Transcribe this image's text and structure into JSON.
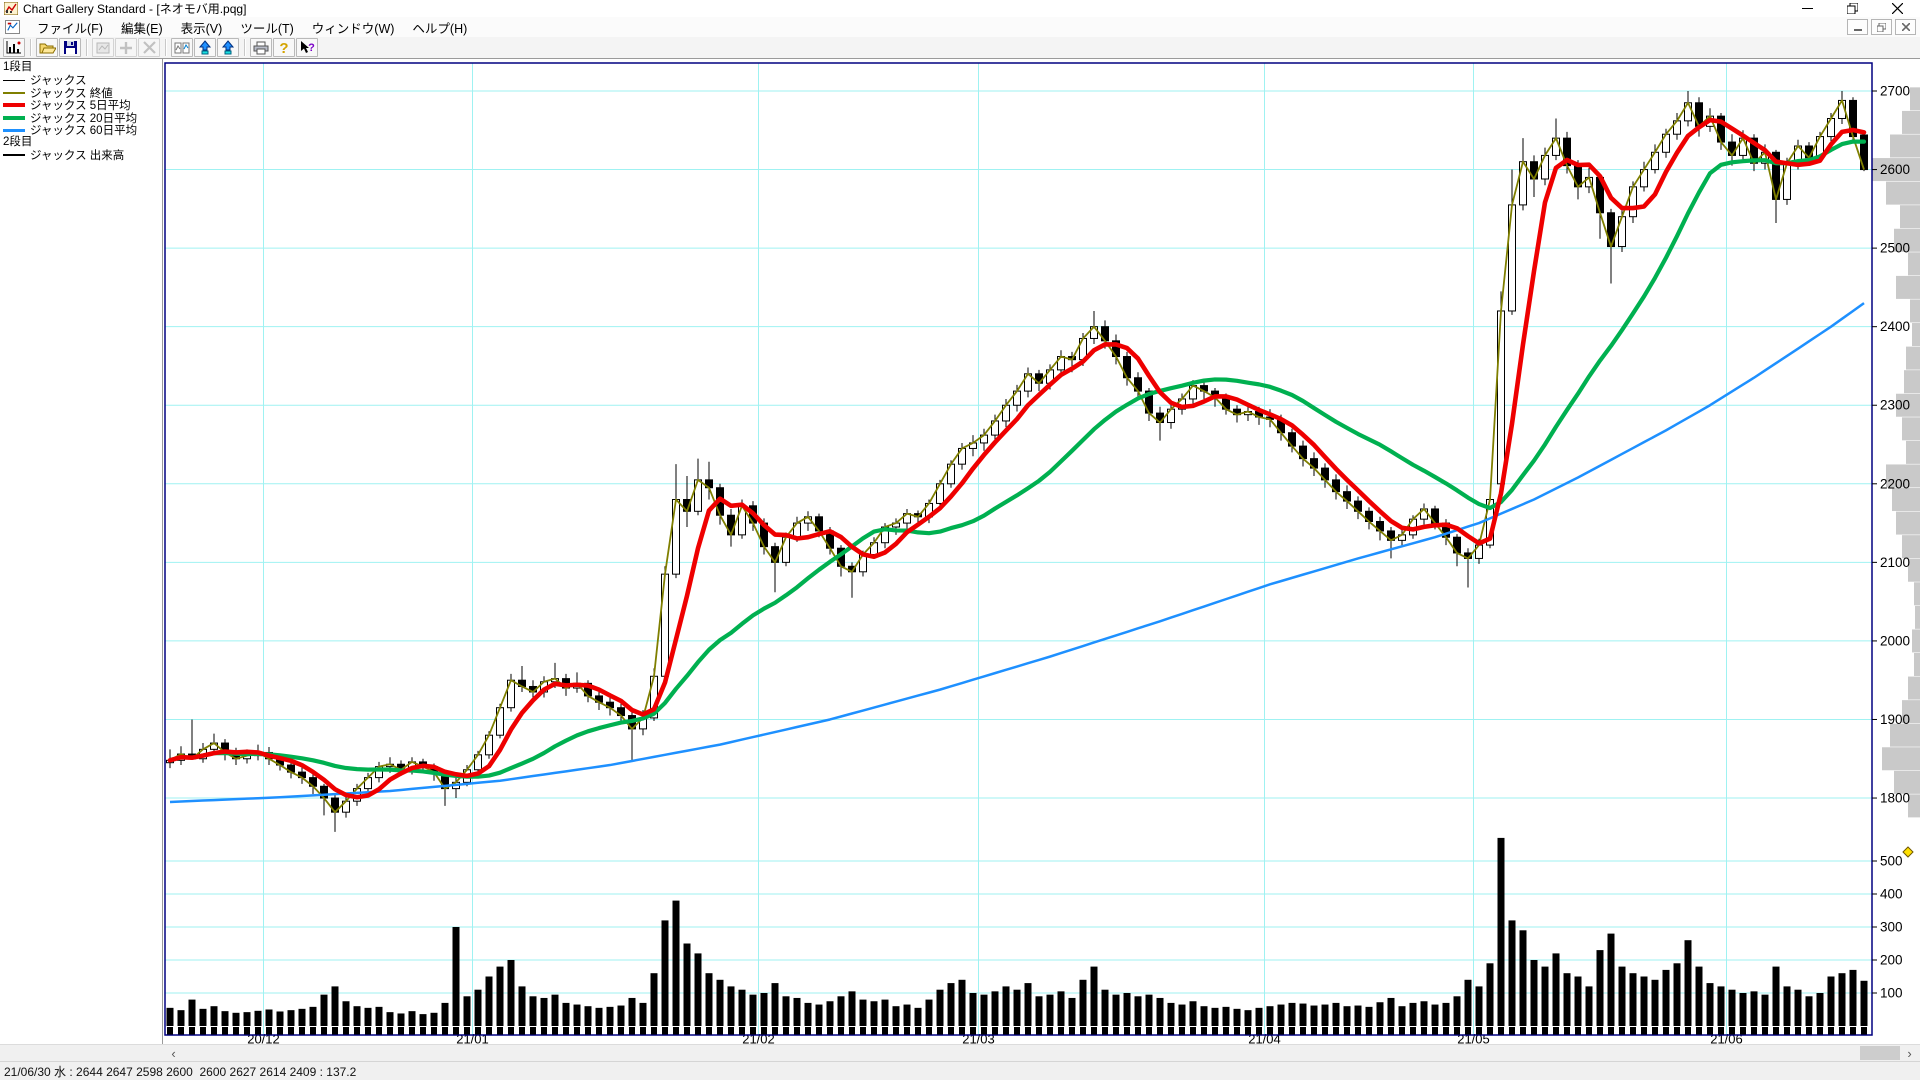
{
  "window": {
    "title": "Chart Gallery Standard - [ネオモバ用.pqg]",
    "controls": [
      {
        "name": "minimize"
      },
      {
        "name": "maximize"
      },
      {
        "name": "close"
      }
    ]
  },
  "menu": {
    "items": [
      "ファイル(F)",
      "編集(E)",
      "表示(V)",
      "ツール(T)",
      "ウィンドウ(W)",
      "ヘルプ(H)"
    ],
    "mdi_controls": [
      {
        "name": "mdi-minimize"
      },
      {
        "name": "mdi-restore"
      },
      {
        "name": "mdi-close"
      }
    ]
  },
  "toolbar": {
    "buttons": [
      {
        "name": "chart-wizard",
        "enabled": true,
        "group": 0
      },
      {
        "name": "open-file",
        "enabled": true,
        "group": 1
      },
      {
        "name": "save-file",
        "enabled": true,
        "group": 1
      },
      {
        "name": "copy-chart",
        "enabled": false,
        "group": 2
      },
      {
        "name": "add-data",
        "enabled": false,
        "group": 2
      },
      {
        "name": "delete-data",
        "enabled": false,
        "group": 2
      },
      {
        "name": "rescale-chart",
        "enabled": true,
        "group": 3
      },
      {
        "name": "scroll-down",
        "enabled": true,
        "group": 3
      },
      {
        "name": "scroll-up",
        "enabled": true,
        "group": 3
      },
      {
        "name": "print",
        "enabled": true,
        "group": 4
      },
      {
        "name": "help",
        "enabled": true,
        "group": 4
      },
      {
        "name": "context-help",
        "enabled": true,
        "group": 4
      }
    ]
  },
  "legend": {
    "pane1_label": "1段目",
    "pane1_items": [
      {
        "label": "ジャックス",
        "color": "#000000",
        "thickness": 1
      },
      {
        "label": "ジャックス 終値",
        "color": "#7f7f00",
        "thickness": 2
      },
      {
        "label": "ジャックス 5日平均",
        "color": "#ee0000",
        "thickness": 4
      },
      {
        "label": "ジャックス 20日平均",
        "color": "#00b050",
        "thickness": 4
      },
      {
        "label": "ジャックス 60日平均",
        "color": "#1e90ff",
        "thickness": 3
      }
    ],
    "pane2_label": "2段目",
    "pane2_items": [
      {
        "label": "ジャックス 出来高",
        "color": "#000000",
        "thickness": 2
      }
    ]
  },
  "scrollbar": {
    "left_arrow": "‹",
    "right_arrow": "›"
  },
  "status_bar": {
    "text": "21/06/30 水 : 2644 2647 2598 2600  2600 2627 2614 2409 : 137.2"
  },
  "chart_data": {
    "type": "candlestick+volume",
    "symbol": "ジャックス",
    "x_labels": [
      "20/12",
      "21/01",
      "21/02",
      "21/03",
      "21/04",
      "21/05",
      "21/06"
    ],
    "month_tick_days": [
      9,
      28,
      54,
      74,
      100,
      119,
      142
    ],
    "price_axis": {
      "min": 1760,
      "max": 2720,
      "ticks": [
        2700,
        2600,
        2500,
        2400,
        2300,
        2200,
        2100,
        2000,
        1900,
        1800
      ]
    },
    "volume_axis": {
      "ticks": [
        500,
        400,
        300,
        200,
        100
      ]
    },
    "colors": {
      "grid": "#9ff2f2",
      "border": "#000080",
      "close_line": "#7f7f00",
      "ma5": "#ee0000",
      "ma20": "#00b050",
      "ma60": "#1e90ff",
      "candle_up": "#ffffff",
      "candle_down": "#000000",
      "volume": "#000000",
      "profile": "#c9c9c9",
      "marker": "#ffe000"
    },
    "candles": [
      [
        1845,
        1862,
        1838,
        1848,
        55
      ],
      [
        1848,
        1866,
        1842,
        1856,
        48
      ],
      [
        1856,
        1900,
        1850,
        1850,
        80
      ],
      [
        1850,
        1870,
        1845,
        1862,
        52
      ],
      [
        1862,
        1882,
        1855,
        1870,
        60
      ],
      [
        1870,
        1875,
        1848,
        1858,
        45
      ],
      [
        1858,
        1864,
        1842,
        1850,
        40
      ],
      [
        1850,
        1862,
        1844,
        1854,
        42
      ],
      [
        1854,
        1868,
        1848,
        1858,
        46
      ],
      [
        1858,
        1865,
        1842,
        1850,
        50
      ],
      [
        1850,
        1856,
        1835,
        1842,
        44
      ],
      [
        1842,
        1848,
        1825,
        1833,
        48
      ],
      [
        1833,
        1840,
        1818,
        1826,
        52
      ],
      [
        1826,
        1830,
        1805,
        1815,
        58
      ],
      [
        1815,
        1818,
        1778,
        1800,
        95
      ],
      [
        1800,
        1805,
        1757,
        1782,
        120
      ],
      [
        1782,
        1802,
        1775,
        1796,
        75
      ],
      [
        1796,
        1818,
        1790,
        1812,
        60
      ],
      [
        1812,
        1832,
        1806,
        1826,
        55
      ],
      [
        1826,
        1846,
        1820,
        1840,
        58
      ],
      [
        1840,
        1852,
        1832,
        1843,
        42
      ],
      [
        1843,
        1848,
        1828,
        1836,
        38
      ],
      [
        1836,
        1852,
        1830,
        1846,
        45
      ],
      [
        1846,
        1850,
        1832,
        1840,
        36
      ],
      [
        1840,
        1844,
        1822,
        1833,
        40
      ],
      [
        1833,
        1836,
        1790,
        1812,
        70
      ],
      [
        1812,
        1828,
        1800,
        1820,
        300
      ],
      [
        1820,
        1842,
        1815,
        1836,
        90
      ],
      [
        1836,
        1860,
        1830,
        1855,
        110
      ],
      [
        1855,
        1885,
        1850,
        1880,
        150
      ],
      [
        1880,
        1920,
        1876,
        1915,
        180
      ],
      [
        1915,
        1958,
        1910,
        1950,
        200
      ],
      [
        1950,
        1968,
        1935,
        1942,
        120
      ],
      [
        1942,
        1950,
        1922,
        1935,
        90
      ],
      [
        1935,
        1955,
        1928,
        1948,
        85
      ],
      [
        1948,
        1972,
        1940,
        1952,
        95
      ],
      [
        1952,
        1958,
        1930,
        1940,
        70
      ],
      [
        1940,
        1960,
        1934,
        1946,
        65
      ],
      [
        1946,
        1950,
        1922,
        1930,
        60
      ],
      [
        1930,
        1938,
        1912,
        1922,
        55
      ],
      [
        1922,
        1930,
        1905,
        1915,
        58
      ],
      [
        1915,
        1920,
        1895,
        1905,
        62
      ],
      [
        1905,
        1910,
        1848,
        1888,
        85
      ],
      [
        1888,
        1912,
        1880,
        1902,
        70
      ],
      [
        1902,
        1965,
        1898,
        1955,
        160
      ],
      [
        1955,
        2095,
        1950,
        2085,
        320
      ],
      [
        2085,
        2225,
        2080,
        2180,
        380
      ],
      [
        2180,
        2210,
        2145,
        2165,
        250
      ],
      [
        2165,
        2232,
        2160,
        2205,
        220
      ],
      [
        2205,
        2228,
        2180,
        2195,
        160
      ],
      [
        2195,
        2200,
        2148,
        2160,
        140
      ],
      [
        2160,
        2168,
        2120,
        2135,
        120
      ],
      [
        2135,
        2180,
        2130,
        2172,
        110
      ],
      [
        2172,
        2178,
        2140,
        2150,
        95
      ],
      [
        2150,
        2156,
        2110,
        2120,
        100
      ],
      [
        2120,
        2125,
        2062,
        2100,
        130
      ],
      [
        2100,
        2138,
        2095,
        2132,
        90
      ],
      [
        2132,
        2158,
        2126,
        2150,
        85
      ],
      [
        2150,
        2165,
        2140,
        2158,
        70
      ],
      [
        2158,
        2162,
        2132,
        2140,
        65
      ],
      [
        2140,
        2145,
        2110,
        2118,
        75
      ],
      [
        2118,
        2122,
        2082,
        2095,
        90
      ],
      [
        2095,
        2100,
        2055,
        2088,
        105
      ],
      [
        2088,
        2115,
        2082,
        2110,
        80
      ],
      [
        2110,
        2132,
        2105,
        2125,
        75
      ],
      [
        2125,
        2150,
        2118,
        2145,
        80
      ],
      [
        2145,
        2156,
        2135,
        2150,
        60
      ],
      [
        2150,
        2168,
        2142,
        2162,
        65
      ],
      [
        2162,
        2166,
        2145,
        2158,
        55
      ],
      [
        2158,
        2180,
        2150,
        2175,
        80
      ],
      [
        2175,
        2205,
        2170,
        2200,
        110
      ],
      [
        2200,
        2230,
        2195,
        2225,
        130
      ],
      [
        2225,
        2252,
        2218,
        2245,
        140
      ],
      [
        2245,
        2262,
        2235,
        2252,
        100
      ],
      [
        2252,
        2270,
        2242,
        2262,
        95
      ],
      [
        2262,
        2288,
        2255,
        2280,
        105
      ],
      [
        2280,
        2308,
        2272,
        2300,
        120
      ],
      [
        2300,
        2326,
        2292,
        2318,
        110
      ],
      [
        2318,
        2348,
        2310,
        2340,
        130
      ],
      [
        2340,
        2345,
        2318,
        2328,
        90
      ],
      [
        2328,
        2352,
        2320,
        2345,
        95
      ],
      [
        2345,
        2370,
        2338,
        2362,
        105
      ],
      [
        2362,
        2368,
        2342,
        2358,
        85
      ],
      [
        2358,
        2392,
        2350,
        2385,
        140
      ],
      [
        2385,
        2420,
        2378,
        2400,
        180
      ],
      [
        2400,
        2408,
        2372,
        2382,
        110
      ],
      [
        2382,
        2390,
        2352,
        2362,
        95
      ],
      [
        2362,
        2368,
        2325,
        2335,
        100
      ],
      [
        2335,
        2342,
        2308,
        2318,
        90
      ],
      [
        2318,
        2322,
        2280,
        2290,
        95
      ],
      [
        2290,
        2298,
        2255,
        2278,
        85
      ],
      [
        2278,
        2302,
        2270,
        2295,
        70
      ],
      [
        2295,
        2315,
        2288,
        2308,
        65
      ],
      [
        2308,
        2332,
        2300,
        2325,
        75
      ],
      [
        2325,
        2330,
        2308,
        2318,
        60
      ],
      [
        2318,
        2322,
        2298,
        2310,
        55
      ],
      [
        2310,
        2315,
        2288,
        2295,
        58
      ],
      [
        2295,
        2300,
        2278,
        2288,
        52
      ],
      [
        2288,
        2300,
        2280,
        2292,
        48
      ],
      [
        2292,
        2298,
        2275,
        2285,
        55
      ],
      [
        2285,
        2295,
        2272,
        2282,
        60
      ],
      [
        2282,
        2288,
        2255,
        2265,
        65
      ],
      [
        2265,
        2270,
        2240,
        2248,
        70
      ],
      [
        2248,
        2255,
        2222,
        2232,
        68
      ],
      [
        2232,
        2240,
        2210,
        2220,
        62
      ],
      [
        2220,
        2226,
        2195,
        2205,
        65
      ],
      [
        2205,
        2212,
        2180,
        2190,
        70
      ],
      [
        2190,
        2198,
        2168,
        2178,
        60
      ],
      [
        2178,
        2184,
        2155,
        2165,
        62
      ],
      [
        2165,
        2170,
        2142,
        2152,
        58
      ],
      [
        2152,
        2158,
        2128,
        2140,
        72
      ],
      [
        2140,
        2145,
        2105,
        2128,
        85
      ],
      [
        2128,
        2142,
        2120,
        2135,
        60
      ],
      [
        2135,
        2160,
        2130,
        2155,
        70
      ],
      [
        2155,
        2175,
        2148,
        2168,
        75
      ],
      [
        2168,
        2172,
        2142,
        2150,
        65
      ],
      [
        2150,
        2155,
        2122,
        2132,
        70
      ],
      [
        2132,
        2136,
        2095,
        2112,
        90
      ],
      [
        2112,
        2118,
        2068,
        2105,
        140
      ],
      [
        2105,
        2130,
        2098,
        2122,
        120
      ],
      [
        2122,
        2188,
        2118,
        2180,
        190
      ],
      [
        2200,
        2445,
        2195,
        2420,
        570
      ],
      [
        2420,
        2600,
        2415,
        2555,
        320
      ],
      [
        2555,
        2640,
        2548,
        2610,
        290
      ],
      [
        2610,
        2618,
        2565,
        2588,
        200
      ],
      [
        2588,
        2628,
        2580,
        2618,
        180
      ],
      [
        2618,
        2665,
        2612,
        2640,
        220
      ],
      [
        2640,
        2648,
        2595,
        2605,
        160
      ],
      [
        2605,
        2612,
        2562,
        2578,
        150
      ],
      [
        2578,
        2602,
        2570,
        2590,
        120
      ],
      [
        2590,
        2595,
        2512,
        2545,
        230
      ],
      [
        2545,
        2550,
        2455,
        2502,
        280
      ],
      [
        2502,
        2548,
        2495,
        2540,
        180
      ],
      [
        2540,
        2585,
        2532,
        2578,
        160
      ],
      [
        2578,
        2610,
        2572,
        2600,
        150
      ],
      [
        2600,
        2632,
        2595,
        2622,
        140
      ],
      [
        2622,
        2652,
        2615,
        2645,
        170
      ],
      [
        2645,
        2672,
        2638,
        2662,
        190
      ],
      [
        2662,
        2700,
        2655,
        2685,
        260
      ],
      [
        2685,
        2692,
        2642,
        2655,
        180
      ],
      [
        2655,
        2678,
        2648,
        2668,
        130
      ],
      [
        2668,
        2672,
        2625,
        2635,
        120
      ],
      [
        2635,
        2645,
        2605,
        2618,
        110
      ],
      [
        2618,
        2650,
        2612,
        2640,
        100
      ],
      [
        2640,
        2645,
        2598,
        2608,
        105
      ],
      [
        2608,
        2632,
        2600,
        2622,
        95
      ],
      [
        2622,
        2625,
        2532,
        2562,
        180
      ],
      [
        2562,
        2615,
        2555,
        2608,
        120
      ],
      [
        2608,
        2638,
        2600,
        2630,
        110
      ],
      [
        2630,
        2635,
        2605,
        2615,
        90
      ],
      [
        2615,
        2648,
        2610,
        2642,
        100
      ],
      [
        2642,
        2672,
        2636,
        2665,
        150
      ],
      [
        2665,
        2700,
        2658,
        2688,
        160
      ],
      [
        2688,
        2692,
        2635,
        2642,
        170
      ],
      [
        2644,
        2647,
        2598,
        2600,
        137
      ]
    ],
    "ma60_keypoints": [
      [
        0,
        1795
      ],
      [
        10,
        1801
      ],
      [
        20,
        1809
      ],
      [
        30,
        1822
      ],
      [
        40,
        1842
      ],
      [
        50,
        1868
      ],
      [
        60,
        1900
      ],
      [
        70,
        1938
      ],
      [
        80,
        1980
      ],
      [
        90,
        2025
      ],
      [
        100,
        2072
      ],
      [
        108,
        2105
      ],
      [
        115,
        2132
      ],
      [
        119,
        2150
      ],
      [
        124,
        2180
      ],
      [
        128,
        2208
      ],
      [
        132,
        2238
      ],
      [
        136,
        2268
      ],
      [
        140,
        2300
      ],
      [
        144,
        2335
      ],
      [
        148,
        2372
      ],
      [
        151,
        2400
      ],
      [
        154,
        2430
      ]
    ],
    "volume_profile": [
      [
        2690,
        10
      ],
      [
        2660,
        18
      ],
      [
        2630,
        30
      ],
      [
        2600,
        48
      ],
      [
        2570,
        34
      ],
      [
        2540,
        20
      ],
      [
        2510,
        26
      ],
      [
        2480,
        12
      ],
      [
        2450,
        24
      ],
      [
        2420,
        10
      ],
      [
        2390,
        8
      ],
      [
        2360,
        14
      ],
      [
        2330,
        16
      ],
      [
        2300,
        24
      ],
      [
        2270,
        18
      ],
      [
        2240,
        14
      ],
      [
        2210,
        34
      ],
      [
        2180,
        28
      ],
      [
        2150,
        24
      ],
      [
        2120,
        18
      ],
      [
        2090,
        12
      ],
      [
        2060,
        6
      ],
      [
        2030,
        5
      ],
      [
        2000,
        8
      ],
      [
        1970,
        6
      ],
      [
        1940,
        12
      ],
      [
        1910,
        18
      ],
      [
        1880,
        30
      ],
      [
        1850,
        38
      ],
      [
        1820,
        26
      ],
      [
        1790,
        12
      ]
    ]
  }
}
